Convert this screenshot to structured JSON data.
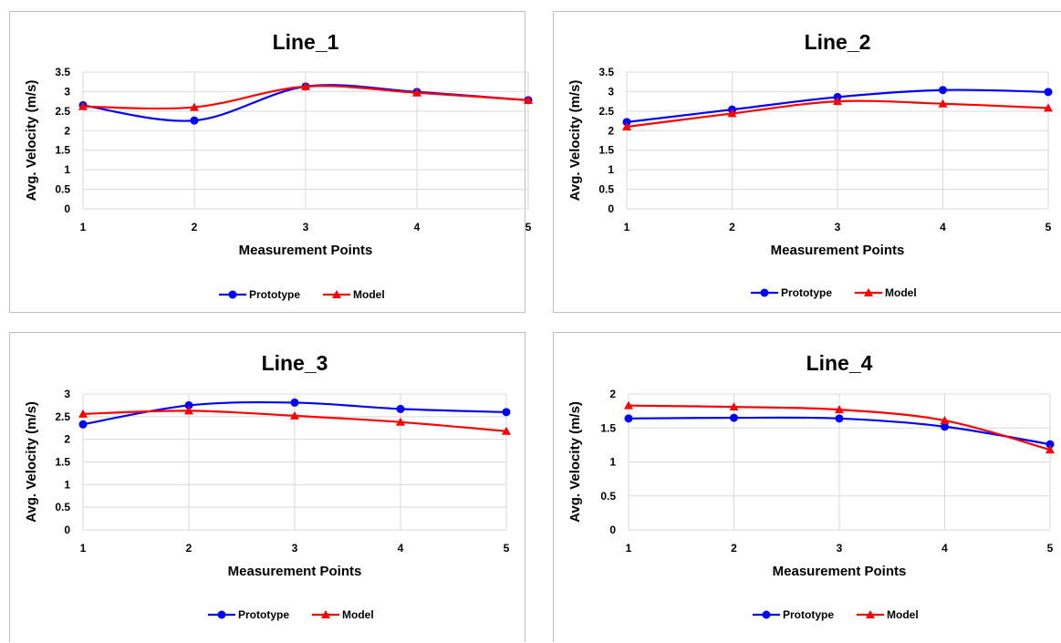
{
  "colors": {
    "prototype": "#0000ff",
    "model": "#ff0000",
    "grid": "#d9d9d9"
  },
  "chart_data": [
    {
      "type": "line",
      "title": "Line_1",
      "xlabel": "Measurement Points",
      "ylabel": "Avg. Velocity (m/s)",
      "x": [
        1,
        2,
        3,
        4,
        5
      ],
      "ylim": [
        0,
        3.5
      ],
      "yticks": [
        0,
        0.5,
        1,
        1.5,
        2,
        2.5,
        3,
        3.5
      ],
      "grid": true,
      "legend": "bottom",
      "series": [
        {
          "name": "Prototype",
          "marker": "circle",
          "values": [
            2.65,
            2.26,
            3.13,
            2.99,
            2.78
          ]
        },
        {
          "name": "Model",
          "marker": "triangle",
          "values": [
            2.62,
            2.6,
            3.13,
            2.97,
            2.78
          ]
        }
      ]
    },
    {
      "type": "line",
      "title": "Line_2",
      "xlabel": "Measurement Points",
      "ylabel": "Avg. Velocity (m/s)",
      "x": [
        1,
        2,
        3,
        4,
        5
      ],
      "ylim": [
        0,
        3.5
      ],
      "yticks": [
        0,
        0.5,
        1,
        1.5,
        2,
        2.5,
        3,
        3.5
      ],
      "grid": true,
      "legend": "bottom",
      "series": [
        {
          "name": "Prototype",
          "marker": "circle",
          "values": [
            2.22,
            2.54,
            2.86,
            3.04,
            2.99
          ]
        },
        {
          "name": "Model",
          "marker": "triangle",
          "values": [
            2.1,
            2.44,
            2.75,
            2.69,
            2.58
          ]
        }
      ]
    },
    {
      "type": "line",
      "title": "Line_3",
      "xlabel": "Measurement Points",
      "ylabel": "Avg. Velocity (m/s)",
      "x": [
        1,
        2,
        3,
        4,
        5
      ],
      "ylim": [
        0,
        3
      ],
      "yticks": [
        0,
        0.5,
        1,
        1.5,
        2,
        2.5,
        3
      ],
      "grid": true,
      "legend": "bottom",
      "series": [
        {
          "name": "Prototype",
          "marker": "circle",
          "values": [
            2.33,
            2.75,
            2.81,
            2.67,
            2.6
          ]
        },
        {
          "name": "Model",
          "marker": "triangle",
          "values": [
            2.56,
            2.63,
            2.52,
            2.38,
            2.18
          ]
        }
      ]
    },
    {
      "type": "line",
      "title": "Line_4",
      "xlabel": "Measurement Points",
      "ylabel": "Avg. Velocity (m/s)",
      "x": [
        1,
        2,
        3,
        4,
        5
      ],
      "ylim": [
        0,
        2
      ],
      "yticks": [
        0,
        0.5,
        1,
        1.5,
        2
      ],
      "grid": true,
      "legend": "bottom",
      "series": [
        {
          "name": "Prototype",
          "marker": "circle",
          "values": [
            1.64,
            1.65,
            1.64,
            1.52,
            1.26
          ]
        },
        {
          "name": "Model",
          "marker": "triangle",
          "values": [
            1.83,
            1.81,
            1.77,
            1.61,
            1.18
          ]
        }
      ]
    }
  ]
}
